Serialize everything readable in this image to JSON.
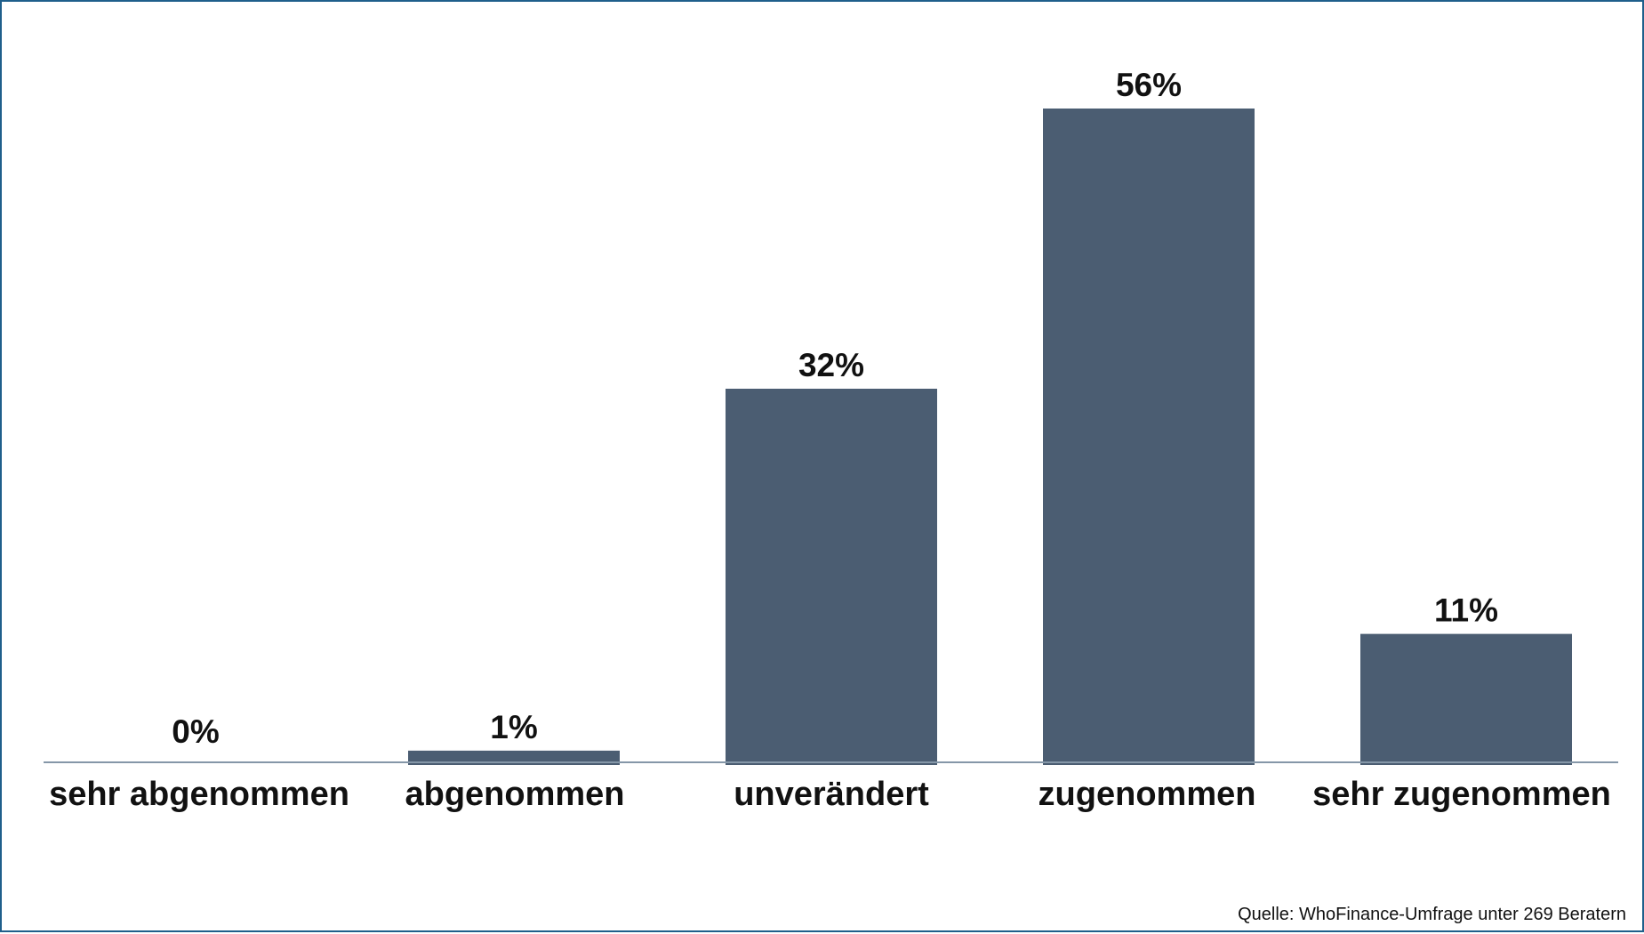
{
  "chart_data": {
    "type": "bar",
    "categories": [
      "sehr abgenommen",
      "abgenommen",
      "unverändert",
      "zugenommen",
      "sehr zugenommen"
    ],
    "values": [
      0,
      1,
      32,
      56,
      11
    ],
    "value_labels": [
      "0%",
      "1%",
      "32%",
      "56%",
      "11%"
    ],
    "title": "",
    "xlabel": "",
    "ylabel": "",
    "ylim": [
      0,
      56
    ],
    "grid": false,
    "legend": "none",
    "bar_color": "#4b5d72",
    "axis_color": "#8597a8",
    "source": "Quelle: WhoFinance-Umfrage unter 269 Beratern"
  },
  "colors": {
    "frame_border": "#1f5f8b",
    "background": "#ffffff",
    "text": "#111111"
  }
}
